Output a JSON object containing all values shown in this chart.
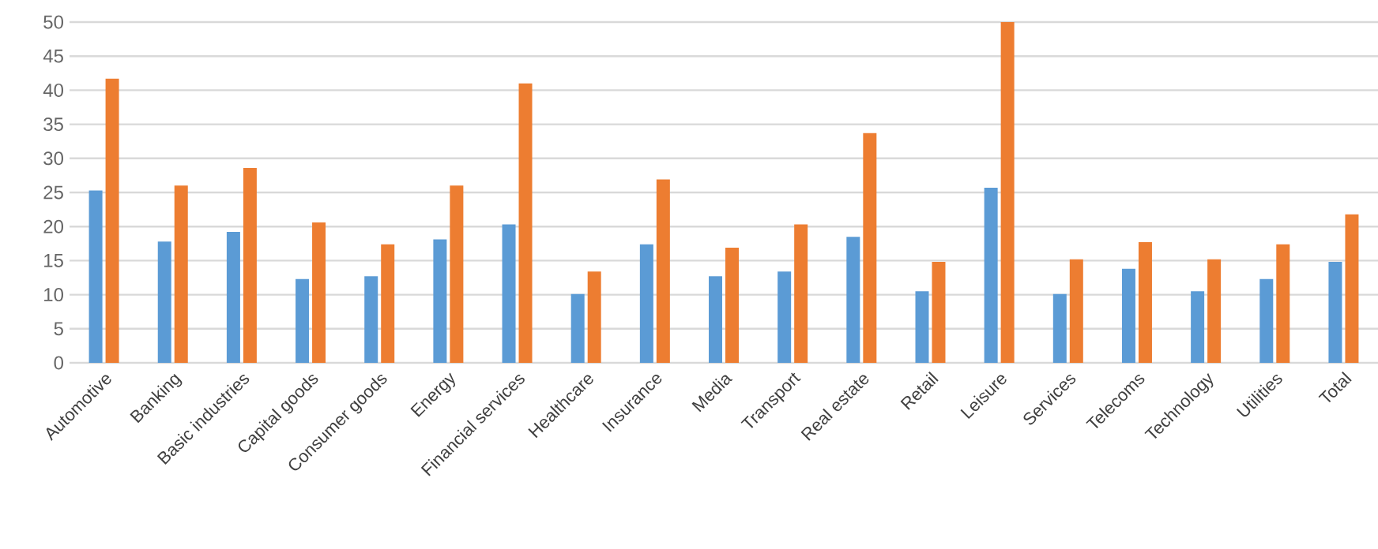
{
  "chart_data": {
    "type": "bar",
    "categories": [
      "Automotive",
      "Banking",
      "Basic industries",
      "Capital goods",
      "Consumer goods",
      "Energy",
      "Financial services",
      "Healthcare",
      "Insurance",
      "Media",
      "Transport",
      "Real estate",
      "Retail",
      "Leisure",
      "Services",
      "Telecoms",
      "Technology",
      "Utilities",
      "Total"
    ],
    "series": [
      {
        "color": "#5b9bd5",
        "values": [
          25.3,
          17.8,
          19.2,
          12.3,
          12.7,
          18.1,
          20.3,
          10.1,
          17.4,
          12.7,
          13.4,
          18.5,
          10.5,
          25.7,
          10.1,
          13.8,
          10.5,
          12.3,
          14.8
        ]
      },
      {
        "color": "#ed7d31",
        "values": [
          41.7,
          26.0,
          28.6,
          20.6,
          17.4,
          26.0,
          41.0,
          13.4,
          26.9,
          16.9,
          20.3,
          33.7,
          14.8,
          50,
          15.2,
          17.7,
          15.2,
          17.4,
          21.8
        ]
      }
    ],
    "ylim": [
      0,
      50
    ],
    "yticks": [
      0,
      5,
      10,
      15,
      20,
      25,
      30,
      35,
      40,
      45,
      50
    ],
    "grid": "y"
  }
}
